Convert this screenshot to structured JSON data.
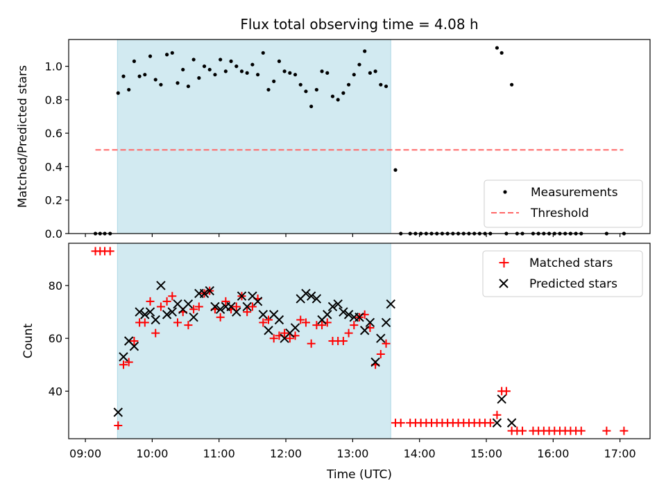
{
  "chart_data": {
    "title": "Flux total observing time = 4.08 h",
    "xlabel": "Time (UTC)",
    "x_range_hours": [
      8.75,
      17.45
    ],
    "x_ticks": [
      "09:00",
      "10:00",
      "11:00",
      "12:00",
      "13:00",
      "14:00",
      "15:00",
      "16:00",
      "17:00"
    ],
    "x_tick_values": [
      9,
      10,
      11,
      12,
      13,
      14,
      15,
      16,
      17
    ],
    "observing_window_hours": [
      9.48,
      13.57
    ],
    "shade_color": "#add8e6",
    "panels": [
      {
        "type": "scatter",
        "ylabel": "Matched/Predicted stars",
        "ylim": [
          0,
          1.16
        ],
        "y_ticks": [
          "0.0",
          "0.2",
          "0.4",
          "0.6",
          "0.8",
          "1.0"
        ],
        "y_tick_values": [
          0,
          0.2,
          0.4,
          0.6,
          0.8,
          1.0
        ],
        "legend_position": "lower-right",
        "threshold": {
          "name": "Threshold",
          "value": 0.5,
          "x": [
            9.15,
            17.05
          ],
          "color": "#ff6666"
        },
        "series": [
          {
            "name": "Measurements",
            "marker": "dot",
            "color": "#000000",
            "points": [
              [
                9.15,
                0
              ],
              [
                9.22,
                0
              ],
              [
                9.29,
                0
              ],
              [
                9.37,
                0
              ],
              [
                9.49,
                0.84
              ],
              [
                9.57,
                0.94
              ],
              [
                9.65,
                0.86
              ],
              [
                9.73,
                1.03
              ],
              [
                9.81,
                0.94
              ],
              [
                9.89,
                0.95
              ],
              [
                9.97,
                1.06
              ],
              [
                10.05,
                0.92
              ],
              [
                10.13,
                0.89
              ],
              [
                10.22,
                1.07
              ],
              [
                10.3,
                1.08
              ],
              [
                10.38,
                0.9
              ],
              [
                10.46,
                0.98
              ],
              [
                10.54,
                0.88
              ],
              [
                10.62,
                1.04
              ],
              [
                10.7,
                0.93
              ],
              [
                10.78,
                1.0
              ],
              [
                10.86,
                0.98
              ],
              [
                10.94,
                0.95
              ],
              [
                11.02,
                1.04
              ],
              [
                11.1,
                0.97
              ],
              [
                11.18,
                1.03
              ],
              [
                11.26,
                1.0
              ],
              [
                11.34,
                0.97
              ],
              [
                11.42,
                0.96
              ],
              [
                11.5,
                1.01
              ],
              [
                11.58,
                0.95
              ],
              [
                11.66,
                1.08
              ],
              [
                11.74,
                0.86
              ],
              [
                11.82,
                0.91
              ],
              [
                11.9,
                1.03
              ],
              [
                11.98,
                0.97
              ],
              [
                12.06,
                0.96
              ],
              [
                12.14,
                0.95
              ],
              [
                12.22,
                0.89
              ],
              [
                12.3,
                0.85
              ],
              [
                12.38,
                0.76
              ],
              [
                12.46,
                0.86
              ],
              [
                12.54,
                0.97
              ],
              [
                12.62,
                0.96
              ],
              [
                12.7,
                0.82
              ],
              [
                12.78,
                0.8
              ],
              [
                12.86,
                0.84
              ],
              [
                12.94,
                0.89
              ],
              [
                13.02,
                0.95
              ],
              [
                13.1,
                1.01
              ],
              [
                13.18,
                1.09
              ],
              [
                13.26,
                0.96
              ],
              [
                13.34,
                0.97
              ],
              [
                13.42,
                0.89
              ],
              [
                13.5,
                0.88
              ],
              [
                13.64,
                0.38
              ],
              [
                13.72,
                0
              ],
              [
                13.86,
                0
              ],
              [
                13.94,
                0
              ],
              [
                14.02,
                0
              ],
              [
                14.1,
                0
              ],
              [
                14.18,
                0
              ],
              [
                14.26,
                0
              ],
              [
                14.34,
                0
              ],
              [
                14.42,
                0
              ],
              [
                14.5,
                0
              ],
              [
                14.58,
                0
              ],
              [
                14.66,
                0
              ],
              [
                14.74,
                0
              ],
              [
                14.82,
                0
              ],
              [
                14.9,
                0
              ],
              [
                14.98,
                0
              ],
              [
                15.06,
                0
              ],
              [
                15.16,
                1.11
              ],
              [
                15.23,
                1.08
              ],
              [
                15.3,
                0
              ],
              [
                15.38,
                0.89
              ],
              [
                15.46,
                0
              ],
              [
                15.54,
                0
              ],
              [
                15.7,
                0
              ],
              [
                15.78,
                0
              ],
              [
                15.86,
                0
              ],
              [
                15.94,
                0
              ],
              [
                16.02,
                0
              ],
              [
                16.1,
                0
              ],
              [
                16.18,
                0
              ],
              [
                16.26,
                0
              ],
              [
                16.34,
                0
              ],
              [
                16.42,
                0
              ],
              [
                16.8,
                0
              ],
              [
                17.06,
                0
              ]
            ]
          }
        ]
      },
      {
        "type": "scatter",
        "ylabel": "Count",
        "ylim": [
          22,
          96
        ],
        "y_ticks": [
          "40",
          "60",
          "80"
        ],
        "y_tick_values": [
          40,
          60,
          80
        ],
        "legend_position": "upper-right",
        "series": [
          {
            "name": "Matched stars",
            "marker": "plus",
            "color": "#ff0000",
            "points": [
              [
                9.15,
                93
              ],
              [
                9.22,
                93
              ],
              [
                9.29,
                93
              ],
              [
                9.37,
                93
              ],
              [
                9.49,
                27
              ],
              [
                9.57,
                50
              ],
              [
                9.65,
                51
              ],
              [
                9.73,
                59
              ],
              [
                9.81,
                66
              ],
              [
                9.89,
                66
              ],
              [
                9.97,
                74
              ],
              [
                10.05,
                62
              ],
              [
                10.13,
                72
              ],
              [
                10.22,
                74
              ],
              [
                10.3,
                76
              ],
              [
                10.38,
                66
              ],
              [
                10.46,
                70
              ],
              [
                10.54,
                65
              ],
              [
                10.62,
                71
              ],
              [
                10.7,
                72
              ],
              [
                10.78,
                77
              ],
              [
                10.86,
                78
              ],
              [
                10.94,
                71
              ],
              [
                11.02,
                68
              ],
              [
                11.1,
                74
              ],
              [
                11.18,
                71
              ],
              [
                11.26,
                72
              ],
              [
                11.34,
                76
              ],
              [
                11.42,
                70
              ],
              [
                11.5,
                72
              ],
              [
                11.58,
                75
              ],
              [
                11.66,
                66
              ],
              [
                11.74,
                67
              ],
              [
                11.82,
                60
              ],
              [
                11.9,
                61
              ],
              [
                11.98,
                62
              ],
              [
                12.06,
                60
              ],
              [
                12.14,
                61
              ],
              [
                12.22,
                67
              ],
              [
                12.3,
                66
              ],
              [
                12.38,
                58
              ],
              [
                12.46,
                65
              ],
              [
                12.54,
                65
              ],
              [
                12.62,
                66
              ],
              [
                12.7,
                59
              ],
              [
                12.78,
                59
              ],
              [
                12.86,
                59
              ],
              [
                12.94,
                62
              ],
              [
                13.02,
                65
              ],
              [
                13.1,
                68
              ],
              [
                13.18,
                69
              ],
              [
                13.26,
                64
              ],
              [
                13.34,
                50
              ],
              [
                13.42,
                54
              ],
              [
                13.5,
                58
              ],
              [
                13.64,
                28
              ],
              [
                13.72,
                28
              ],
              [
                13.86,
                28
              ],
              [
                13.94,
                28
              ],
              [
                14.02,
                28
              ],
              [
                14.1,
                28
              ],
              [
                14.18,
                28
              ],
              [
                14.26,
                28
              ],
              [
                14.34,
                28
              ],
              [
                14.42,
                28
              ],
              [
                14.5,
                28
              ],
              [
                14.58,
                28
              ],
              [
                14.66,
                28
              ],
              [
                14.74,
                28
              ],
              [
                14.82,
                28
              ],
              [
                14.9,
                28
              ],
              [
                14.98,
                28
              ],
              [
                15.06,
                28
              ],
              [
                15.16,
                31
              ],
              [
                15.23,
                40
              ],
              [
                15.3,
                40
              ],
              [
                15.38,
                25
              ],
              [
                15.46,
                25
              ],
              [
                15.54,
                25
              ],
              [
                15.7,
                25
              ],
              [
                15.78,
                25
              ],
              [
                15.86,
                25
              ],
              [
                15.94,
                25
              ],
              [
                16.02,
                25
              ],
              [
                16.1,
                25
              ],
              [
                16.18,
                25
              ],
              [
                16.26,
                25
              ],
              [
                16.34,
                25
              ],
              [
                16.42,
                25
              ],
              [
                16.8,
                25
              ],
              [
                17.06,
                25
              ]
            ]
          },
          {
            "name": "Predicted stars",
            "marker": "x",
            "color": "#000000",
            "points": [
              [
                9.49,
                32
              ],
              [
                9.57,
                53
              ],
              [
                9.65,
                59
              ],
              [
                9.73,
                57
              ],
              [
                9.81,
                70
              ],
              [
                9.89,
                69
              ],
              [
                9.97,
                70
              ],
              [
                10.05,
                67
              ],
              [
                10.13,
                80
              ],
              [
                10.22,
                69
              ],
              [
                10.3,
                70
              ],
              [
                10.38,
                73
              ],
              [
                10.46,
                71
              ],
              [
                10.54,
                73
              ],
              [
                10.62,
                68
              ],
              [
                10.7,
                77
              ],
              [
                10.78,
                77
              ],
              [
                10.86,
                78
              ],
              [
                10.94,
                72
              ],
              [
                11.02,
                71
              ],
              [
                11.1,
                72
              ],
              [
                11.18,
                72
              ],
              [
                11.26,
                70
              ],
              [
                11.34,
                76
              ],
              [
                11.42,
                72
              ],
              [
                11.5,
                76
              ],
              [
                11.58,
                74
              ],
              [
                11.66,
                69
              ],
              [
                11.74,
                63
              ],
              [
                11.82,
                69
              ],
              [
                11.9,
                67
              ],
              [
                11.98,
                60
              ],
              [
                12.06,
                62
              ],
              [
                12.14,
                64
              ],
              [
                12.22,
                75
              ],
              [
                12.3,
                77
              ],
              [
                12.38,
                76
              ],
              [
                12.46,
                75
              ],
              [
                12.54,
                67
              ],
              [
                12.62,
                69
              ],
              [
                12.7,
                72
              ],
              [
                12.78,
                73
              ],
              [
                12.86,
                70
              ],
              [
                12.94,
                69
              ],
              [
                13.02,
                68
              ],
              [
                13.1,
                68
              ],
              [
                13.18,
                63
              ],
              [
                13.26,
                66
              ],
              [
                13.34,
                51
              ],
              [
                13.42,
                60
              ],
              [
                13.5,
                66
              ],
              [
                13.57,
                73
              ],
              [
                15.16,
                28
              ],
              [
                15.23,
                37
              ],
              [
                15.38,
                28
              ]
            ]
          }
        ]
      }
    ]
  }
}
